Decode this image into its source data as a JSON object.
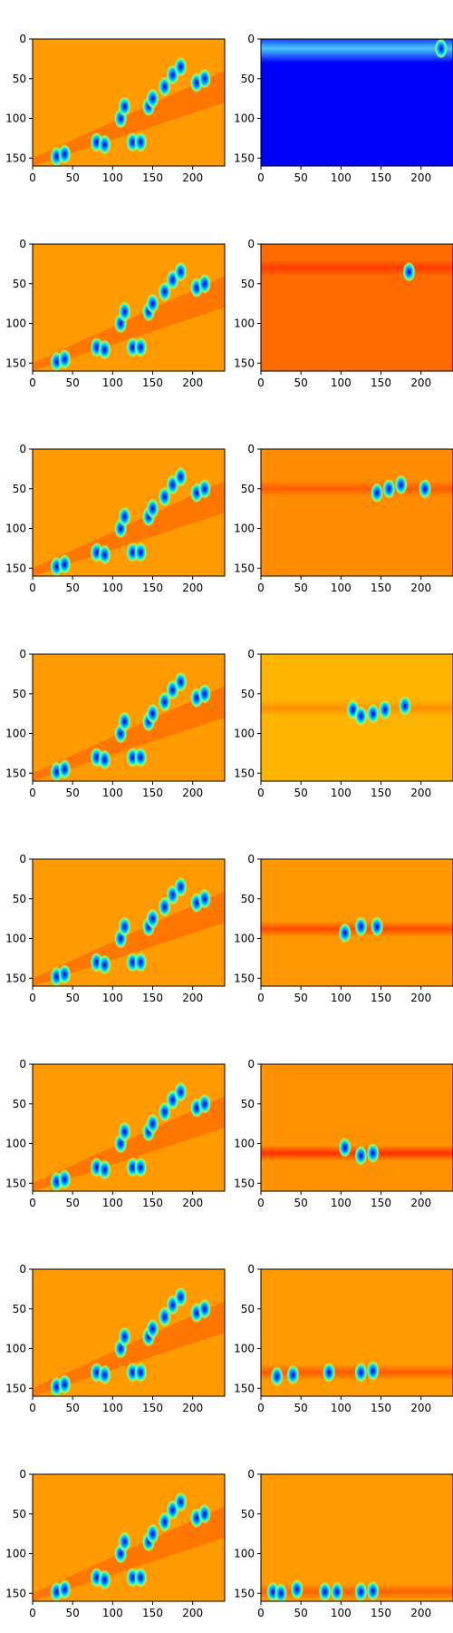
{
  "figure": {
    "rows": 8,
    "cols": 2,
    "colormap": "jet",
    "background": "#ffffff",
    "axis_color": "#000000"
  },
  "axes": {
    "xticks": [
      0,
      50,
      100,
      150,
      200
    ],
    "yticks": [
      0,
      50,
      100,
      150
    ],
    "xlim": [
      0,
      240
    ],
    "ylim": [
      160,
      0
    ]
  },
  "chart_data": [
    {
      "type": "heatmap",
      "row": 1,
      "col": 1,
      "background_color": "#ff9a00",
      "blobs": [
        [
          30,
          148
        ],
        [
          40,
          145
        ],
        [
          80,
          130
        ],
        [
          90,
          133
        ],
        [
          110,
          100
        ],
        [
          115,
          85
        ],
        [
          125,
          130
        ],
        [
          135,
          130
        ],
        [
          145,
          85
        ],
        [
          150,
          75
        ],
        [
          165,
          60
        ],
        [
          175,
          45
        ],
        [
          185,
          35
        ],
        [
          205,
          55
        ],
        [
          215,
          50
        ]
      ]
    },
    {
      "type": "heatmap",
      "row": 1,
      "col": 2,
      "background_color": "#0000ff",
      "band": {
        "y_center": 12,
        "y_half_width": 18,
        "color": "#48c8ff"
      },
      "blobs": [
        [
          225,
          12
        ]
      ]
    },
    {
      "type": "heatmap",
      "row": 2,
      "col": 1,
      "background_color": "#ff9a00",
      "blobs": [
        [
          30,
          148
        ],
        [
          40,
          145
        ],
        [
          80,
          130
        ],
        [
          90,
          133
        ],
        [
          110,
          100
        ],
        [
          115,
          85
        ],
        [
          125,
          130
        ],
        [
          135,
          130
        ],
        [
          145,
          85
        ],
        [
          150,
          75
        ],
        [
          165,
          60
        ],
        [
          175,
          45
        ],
        [
          185,
          35
        ],
        [
          205,
          55
        ],
        [
          215,
          50
        ]
      ]
    },
    {
      "type": "heatmap",
      "row": 2,
      "col": 2,
      "background_color": "#ff6a00",
      "band": {
        "y_center": 30,
        "y_half_width": 10,
        "color": "#ff3a00"
      },
      "blobs": [
        [
          185,
          35
        ]
      ]
    },
    {
      "type": "heatmap",
      "row": 3,
      "col": 1,
      "background_color": "#ff9a00",
      "blobs": [
        [
          30,
          148
        ],
        [
          40,
          145
        ],
        [
          80,
          130
        ],
        [
          90,
          133
        ],
        [
          110,
          100
        ],
        [
          115,
          85
        ],
        [
          125,
          130
        ],
        [
          135,
          130
        ],
        [
          145,
          85
        ],
        [
          150,
          75
        ],
        [
          165,
          60
        ],
        [
          175,
          45
        ],
        [
          185,
          35
        ],
        [
          205,
          55
        ],
        [
          215,
          50
        ]
      ]
    },
    {
      "type": "heatmap",
      "row": 3,
      "col": 2,
      "background_color": "#ff8c00",
      "band": {
        "y_center": 50,
        "y_half_width": 10,
        "color": "#ff5a00"
      },
      "blobs": [
        [
          145,
          55
        ],
        [
          160,
          50
        ],
        [
          175,
          45
        ],
        [
          205,
          50
        ]
      ]
    },
    {
      "type": "heatmap",
      "row": 4,
      "col": 1,
      "background_color": "#ff9a00",
      "blobs": [
        [
          30,
          148
        ],
        [
          40,
          145
        ],
        [
          80,
          130
        ],
        [
          90,
          133
        ],
        [
          110,
          100
        ],
        [
          115,
          85
        ],
        [
          125,
          130
        ],
        [
          135,
          130
        ],
        [
          145,
          85
        ],
        [
          150,
          75
        ],
        [
          165,
          60
        ],
        [
          175,
          45
        ],
        [
          185,
          35
        ],
        [
          205,
          55
        ],
        [
          215,
          50
        ]
      ]
    },
    {
      "type": "heatmap",
      "row": 4,
      "col": 2,
      "background_color": "#ffb400",
      "band": {
        "y_center": 68,
        "y_half_width": 10,
        "color": "#ff9000"
      },
      "blobs": [
        [
          115,
          70
        ],
        [
          125,
          78
        ],
        [
          140,
          75
        ],
        [
          155,
          70
        ],
        [
          180,
          65
        ]
      ]
    },
    {
      "type": "heatmap",
      "row": 5,
      "col": 1,
      "background_color": "#ff9a00",
      "blobs": [
        [
          30,
          148
        ],
        [
          40,
          145
        ],
        [
          80,
          130
        ],
        [
          90,
          133
        ],
        [
          110,
          100
        ],
        [
          115,
          85
        ],
        [
          125,
          130
        ],
        [
          135,
          130
        ],
        [
          145,
          85
        ],
        [
          150,
          75
        ],
        [
          165,
          60
        ],
        [
          175,
          45
        ],
        [
          185,
          35
        ],
        [
          205,
          55
        ],
        [
          215,
          50
        ]
      ]
    },
    {
      "type": "heatmap",
      "row": 5,
      "col": 2,
      "background_color": "#ff9800",
      "band": {
        "y_center": 88,
        "y_half_width": 10,
        "color": "#ff4a00"
      },
      "blobs": [
        [
          105,
          93
        ],
        [
          125,
          85
        ],
        [
          145,
          85
        ]
      ]
    },
    {
      "type": "heatmap",
      "row": 6,
      "col": 1,
      "background_color": "#ff9a00",
      "blobs": [
        [
          30,
          148
        ],
        [
          40,
          145
        ],
        [
          80,
          130
        ],
        [
          90,
          133
        ],
        [
          110,
          100
        ],
        [
          115,
          85
        ],
        [
          125,
          130
        ],
        [
          135,
          130
        ],
        [
          145,
          85
        ],
        [
          150,
          75
        ],
        [
          165,
          60
        ],
        [
          175,
          45
        ],
        [
          185,
          35
        ],
        [
          205,
          55
        ],
        [
          215,
          50
        ]
      ]
    },
    {
      "type": "heatmap",
      "row": 6,
      "col": 2,
      "background_color": "#ff9200",
      "band": {
        "y_center": 112,
        "y_half_width": 10,
        "color": "#ff3000"
      },
      "blobs": [
        [
          105,
          105
        ],
        [
          125,
          115
        ],
        [
          140,
          112
        ]
      ]
    },
    {
      "type": "heatmap",
      "row": 7,
      "col": 1,
      "background_color": "#ff9a00",
      "blobs": [
        [
          30,
          148
        ],
        [
          40,
          145
        ],
        [
          80,
          130
        ],
        [
          90,
          133
        ],
        [
          110,
          100
        ],
        [
          115,
          85
        ],
        [
          125,
          130
        ],
        [
          135,
          130
        ],
        [
          145,
          85
        ],
        [
          150,
          75
        ],
        [
          165,
          60
        ],
        [
          175,
          45
        ],
        [
          185,
          35
        ],
        [
          205,
          55
        ],
        [
          215,
          50
        ]
      ]
    },
    {
      "type": "heatmap",
      "row": 7,
      "col": 2,
      "background_color": "#ff9a00",
      "band": {
        "y_center": 130,
        "y_half_width": 10,
        "color": "#ff5a00"
      },
      "blobs": [
        [
          20,
          135
        ],
        [
          40,
          133
        ],
        [
          85,
          130
        ],
        [
          125,
          130
        ],
        [
          140,
          128
        ]
      ]
    },
    {
      "type": "heatmap",
      "row": 8,
      "col": 1,
      "background_color": "#ff9a00",
      "blobs": [
        [
          30,
          148
        ],
        [
          40,
          145
        ],
        [
          80,
          130
        ],
        [
          90,
          133
        ],
        [
          110,
          100
        ],
        [
          115,
          85
        ],
        [
          125,
          130
        ],
        [
          135,
          130
        ],
        [
          145,
          85
        ],
        [
          150,
          75
        ],
        [
          165,
          60
        ],
        [
          175,
          45
        ],
        [
          185,
          35
        ],
        [
          205,
          55
        ],
        [
          215,
          50
        ]
      ]
    },
    {
      "type": "heatmap",
      "row": 8,
      "col": 2,
      "background_color": "#ff9a00",
      "band": {
        "y_center": 148,
        "y_half_width": 10,
        "color": "#ff6000"
      },
      "blobs": [
        [
          15,
          148
        ],
        [
          25,
          150
        ],
        [
          45,
          145
        ],
        [
          80,
          148
        ],
        [
          95,
          148
        ],
        [
          125,
          148
        ],
        [
          140,
          147
        ]
      ]
    }
  ]
}
